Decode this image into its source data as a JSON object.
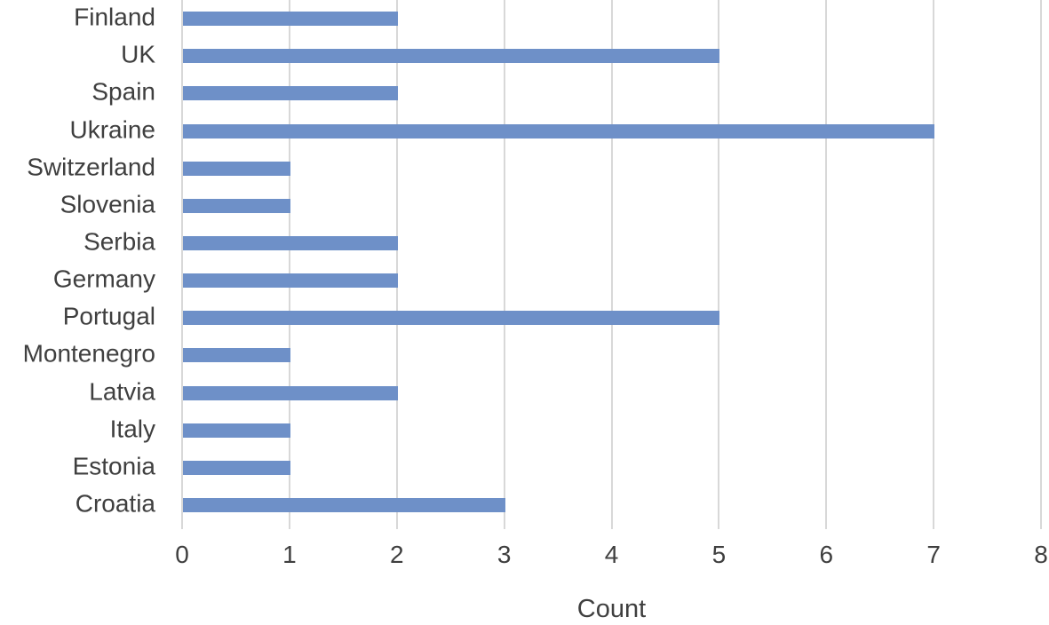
{
  "chart_data": {
    "type": "bar",
    "orientation": "horizontal",
    "title": "",
    "xlabel": "Count",
    "ylabel": "",
    "categories": [
      "Finland",
      "UK",
      "Spain",
      "Ukraine",
      "Switzerland",
      "Slovenia",
      "Serbia",
      "Germany",
      "Portugal",
      "Montenegro",
      "Latvia",
      "Italy",
      "Estonia",
      "Croatia"
    ],
    "values": [
      2,
      5,
      2,
      7,
      1,
      1,
      2,
      2,
      5,
      1,
      2,
      1,
      1,
      3
    ],
    "xlim": [
      0,
      8
    ],
    "x_ticks": [
      0,
      1,
      2,
      3,
      4,
      5,
      6,
      7,
      8
    ],
    "grid": true,
    "legend": false,
    "colors": {
      "bar": "#6E90C8",
      "gridline": "#D8D8D8",
      "text": "#3F3F3F",
      "background": "#FFFFFF"
    }
  }
}
